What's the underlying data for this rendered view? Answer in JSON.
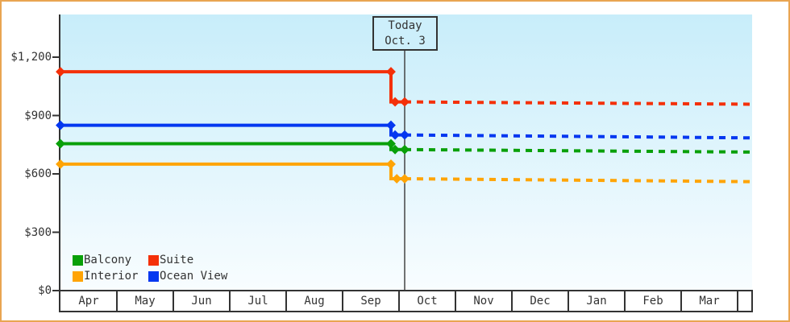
{
  "window": {
    "background_color": "#ffffff",
    "frame_border_color": "#e9a552"
  },
  "chart_data": {
    "type": "line",
    "title": "",
    "currency": "USD",
    "x_categories": [
      "Apr",
      "May",
      "Jun",
      "Jul",
      "Aug",
      "Sep",
      "Oct",
      "Nov",
      "Dec",
      "Jan",
      "Feb",
      "Mar"
    ],
    "y_tick_labels": [
      "$0",
      "$300",
      "$600",
      "$900",
      "$1,200"
    ],
    "y_tick_values": [
      0,
      300,
      600,
      900,
      1200
    ],
    "ylim": [
      0,
      1420
    ],
    "grid": false,
    "legend_position": "bottom-left",
    "today_marker": {
      "line1": "Today",
      "line2": "Oct. 3",
      "x_month_fraction": 6.1,
      "line_color": "#444444"
    },
    "axis_color": "#333333",
    "plot_bg_top": "#c8edfa",
    "plot_bg_bottom": "#f8fdff",
    "series": [
      {
        "name": "Balcony",
        "color": "#09a009",
        "history": [
          [
            0,
            755
          ],
          [
            5.857,
            755
          ],
          [
            5.857,
            725
          ],
          [
            6.1,
            725
          ]
        ],
        "forecast": [
          [
            6.1,
            725
          ],
          [
            12.27,
            712
          ]
        ],
        "marker_points": [
          [
            0,
            755
          ],
          [
            5.857,
            755
          ],
          [
            5.93,
            725
          ],
          [
            6.1,
            725
          ]
        ]
      },
      {
        "name": "Suite",
        "color": "#f43009",
        "history": [
          [
            0,
            1125
          ],
          [
            5.857,
            1125
          ],
          [
            5.857,
            970
          ],
          [
            6.1,
            970
          ]
        ],
        "forecast": [
          [
            6.1,
            970
          ],
          [
            12.27,
            958
          ]
        ],
        "marker_points": [
          [
            0,
            1125
          ],
          [
            5.857,
            1125
          ],
          [
            5.93,
            970
          ],
          [
            6.1,
            970
          ]
        ]
      },
      {
        "name": "Interior",
        "color": "#ffa405",
        "history": [
          [
            0,
            650
          ],
          [
            5.857,
            650
          ],
          [
            5.857,
            575
          ],
          [
            6.1,
            575
          ]
        ],
        "forecast": [
          [
            6.1,
            575
          ],
          [
            12.27,
            560
          ]
        ],
        "marker_points": [
          [
            0,
            650
          ],
          [
            5.857,
            650
          ],
          [
            5.96,
            575
          ],
          [
            6.1,
            575
          ]
        ]
      },
      {
        "name": "Ocean View",
        "color": "#0437f0",
        "history": [
          [
            0,
            850
          ],
          [
            5.857,
            850
          ],
          [
            5.857,
            800
          ],
          [
            6.1,
            800
          ]
        ],
        "forecast": [
          [
            6.1,
            800
          ],
          [
            12.27,
            785
          ]
        ],
        "marker_points": [
          [
            0,
            850
          ],
          [
            5.857,
            850
          ],
          [
            5.93,
            800
          ],
          [
            6.1,
            800
          ]
        ]
      }
    ],
    "legend": [
      {
        "label": "Balcony",
        "color": "#09a009"
      },
      {
        "label": "Suite",
        "color": "#f43009"
      },
      {
        "label": "Interior",
        "color": "#ffa405"
      },
      {
        "label": "Ocean View",
        "color": "#0437f0"
      }
    ]
  }
}
